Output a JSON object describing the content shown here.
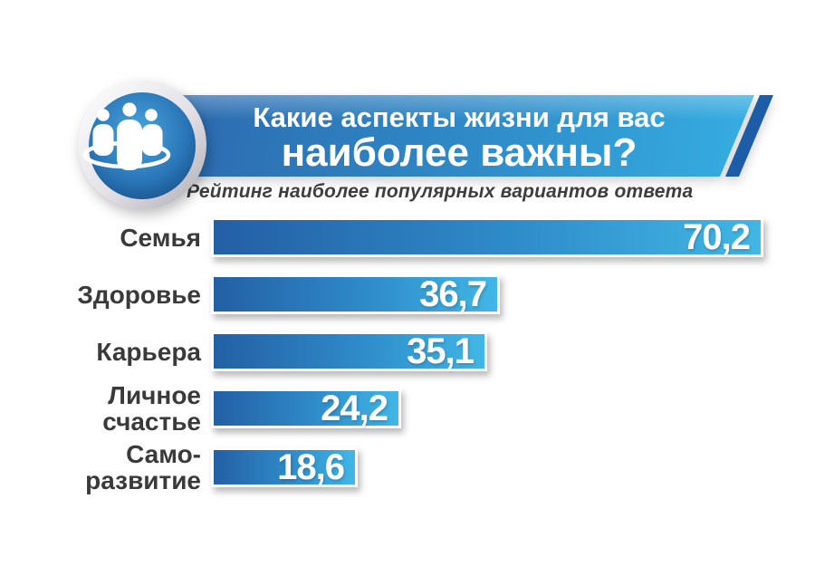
{
  "page": {
    "background": "#ffffff"
  },
  "header": {
    "icon": "people-group-icon",
    "title_line1": "Какие аспекты жизни для вас",
    "title_line2": "наиболее важны?",
    "subtitle": "Рейтинг наиболее популярных вариантов ответа"
  },
  "chart_data": {
    "type": "bar",
    "orientation": "horizontal",
    "title": "Какие аспекты жизни для вас наиболее важны?",
    "subtitle": "Рейтинг наиболее популярных вариантов ответа",
    "categories": [
      "Семья",
      "Здоровье",
      "Карьера",
      "Личное счастье",
      "Саморазвитие"
    ],
    "category_lines": [
      [
        "Семья"
      ],
      [
        "Здоровье"
      ],
      [
        "Карьера"
      ],
      [
        "Личное",
        "счастье"
      ],
      [
        "Само-",
        "развитие"
      ]
    ],
    "values": [
      70.2,
      36.7,
      35.1,
      24.2,
      18.6
    ],
    "value_labels": [
      "70,2",
      "36,7",
      "35,1",
      "24,2",
      "18,6"
    ],
    "xlim": [
      0,
      70.2
    ],
    "grid": false,
    "legend": false
  },
  "colors": {
    "bar_gradient_left": "#235fa4",
    "bar_gradient_right": "#41b7e6",
    "bar_border": "#ffffff",
    "banner_gradient_left": "#2c68ad",
    "banner_gradient_right": "#36b1e4",
    "banner_accent_stripe": "#1d5ca6",
    "title_text": "#ffffff",
    "subtitle_text": "#3e3e3e",
    "category_text": "#3a3a3a",
    "value_text": "#ffffff",
    "badge_inner": "#1b5causes"
  }
}
